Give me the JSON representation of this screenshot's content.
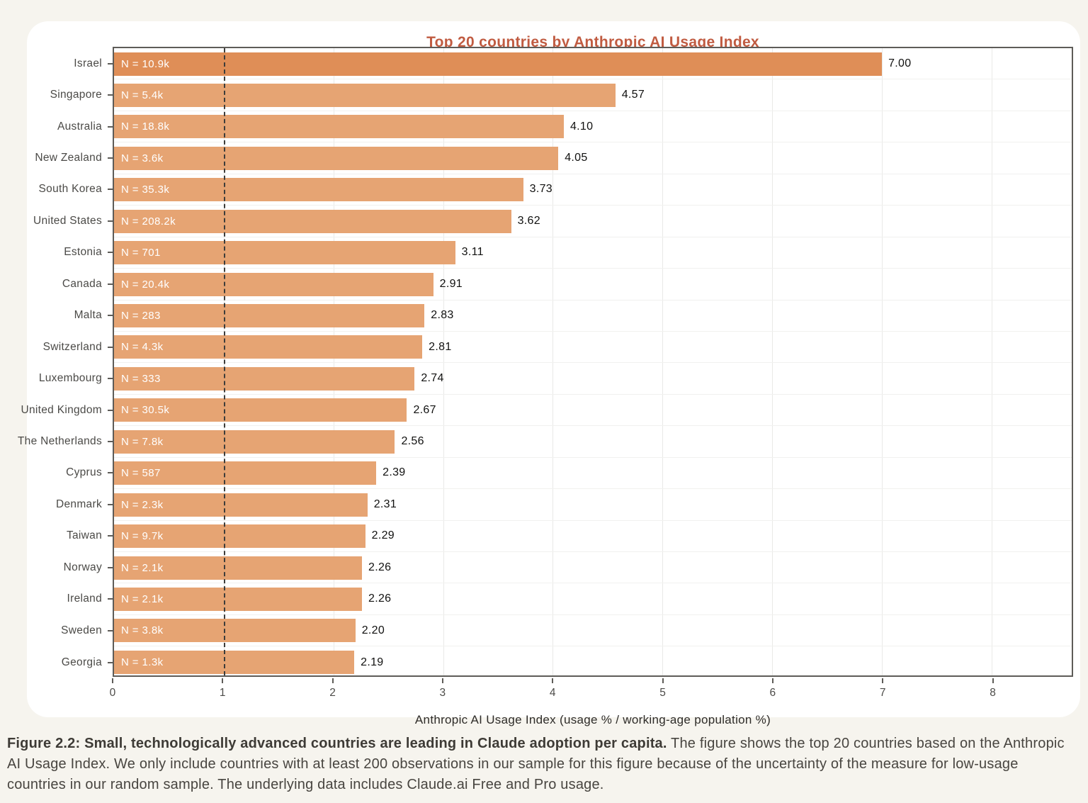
{
  "page": {
    "background_color": "#F6F4EE",
    "card_color": "#FFFFFF"
  },
  "chart_data": {
    "type": "bar",
    "orientation": "horizontal",
    "title": "Top 20 countries by Anthropic AI Usage Index",
    "xlabel": "Anthropic AI Usage Index (usage % / working-age population %)",
    "xlim": [
      0,
      8.73
    ],
    "x_ticks": [
      0,
      1,
      2,
      3,
      4,
      5,
      6,
      7,
      8
    ],
    "reference_line_x": 1,
    "grid": "on",
    "title_color": "#C05B41",
    "highlight_bar_color": "#DF8E57",
    "default_bar_color": "#E6A473",
    "categories": [
      "Israel",
      "Singapore",
      "Australia",
      "New Zealand",
      "South Korea",
      "United States",
      "Estonia",
      "Canada",
      "Malta",
      "Switzerland",
      "Luxembourg",
      "United Kingdom",
      "The Netherlands",
      "Cyprus",
      "Denmark",
      "Taiwan",
      "Norway",
      "Ireland",
      "Sweden",
      "Georgia"
    ],
    "values": [
      7.0,
      4.57,
      4.1,
      4.05,
      3.73,
      3.62,
      3.11,
      2.91,
      2.83,
      2.81,
      2.74,
      2.67,
      2.56,
      2.39,
      2.31,
      2.29,
      2.26,
      2.26,
      2.2,
      2.19
    ],
    "bars": [
      {
        "country": "Israel",
        "n_label": "N = 10.9k",
        "value": 7.0,
        "value_label": "7.00",
        "color": "#DF8E57"
      },
      {
        "country": "Singapore",
        "n_label": "N = 5.4k",
        "value": 4.57,
        "value_label": "4.57",
        "color": "#E6A473"
      },
      {
        "country": "Australia",
        "n_label": "N = 18.8k",
        "value": 4.1,
        "value_label": "4.10",
        "color": "#E6A473"
      },
      {
        "country": "New Zealand",
        "n_label": "N = 3.6k",
        "value": 4.05,
        "value_label": "4.05",
        "color": "#E6A473"
      },
      {
        "country": "South Korea",
        "n_label": "N = 35.3k",
        "value": 3.73,
        "value_label": "3.73",
        "color": "#E6A473"
      },
      {
        "country": "United States",
        "n_label": "N = 208.2k",
        "value": 3.62,
        "value_label": "3.62",
        "color": "#E6A473"
      },
      {
        "country": "Estonia",
        "n_label": "N = 701",
        "value": 3.11,
        "value_label": "3.11",
        "color": "#E6A473"
      },
      {
        "country": "Canada",
        "n_label": "N = 20.4k",
        "value": 2.91,
        "value_label": "2.91",
        "color": "#E6A473"
      },
      {
        "country": "Malta",
        "n_label": "N = 283",
        "value": 2.83,
        "value_label": "2.83",
        "color": "#E6A473"
      },
      {
        "country": "Switzerland",
        "n_label": "N = 4.3k",
        "value": 2.81,
        "value_label": "2.81",
        "color": "#E6A473"
      },
      {
        "country": "Luxembourg",
        "n_label": "N = 333",
        "value": 2.74,
        "value_label": "2.74",
        "color": "#E6A473"
      },
      {
        "country": "United Kingdom",
        "n_label": "N = 30.5k",
        "value": 2.67,
        "value_label": "2.67",
        "color": "#E6A473"
      },
      {
        "country": "The Netherlands",
        "n_label": "N = 7.8k",
        "value": 2.56,
        "value_label": "2.56",
        "color": "#E6A473"
      },
      {
        "country": "Cyprus",
        "n_label": "N = 587",
        "value": 2.39,
        "value_label": "2.39",
        "color": "#E6A473"
      },
      {
        "country": "Denmark",
        "n_label": "N = 2.3k",
        "value": 2.31,
        "value_label": "2.31",
        "color": "#E6A473"
      },
      {
        "country": "Taiwan",
        "n_label": "N = 9.7k",
        "value": 2.29,
        "value_label": "2.29",
        "color": "#E6A473"
      },
      {
        "country": "Norway",
        "n_label": "N = 2.1k",
        "value": 2.26,
        "value_label": "2.26",
        "color": "#E6A473"
      },
      {
        "country": "Ireland",
        "n_label": "N = 2.1k",
        "value": 2.26,
        "value_label": "2.26",
        "color": "#E6A473"
      },
      {
        "country": "Sweden",
        "n_label": "N = 3.8k",
        "value": 2.2,
        "value_label": "2.20",
        "color": "#E6A473"
      },
      {
        "country": "Georgia",
        "n_label": "N = 1.3k",
        "value": 2.19,
        "value_label": "2.19",
        "color": "#E6A473"
      }
    ]
  },
  "caption": {
    "bold": "Figure 2.2: Small, technologically advanced countries are leading in Claude adoption per capita.",
    "text": " The figure shows the top 20 countries based on the Anthropic AI Usage Index. We only include countries with at least 200 observations in our sample for this figure because of the uncertainty of the measure for low-usage countries in our random sample. The underlying data includes Claude.ai Free and Pro usage."
  }
}
